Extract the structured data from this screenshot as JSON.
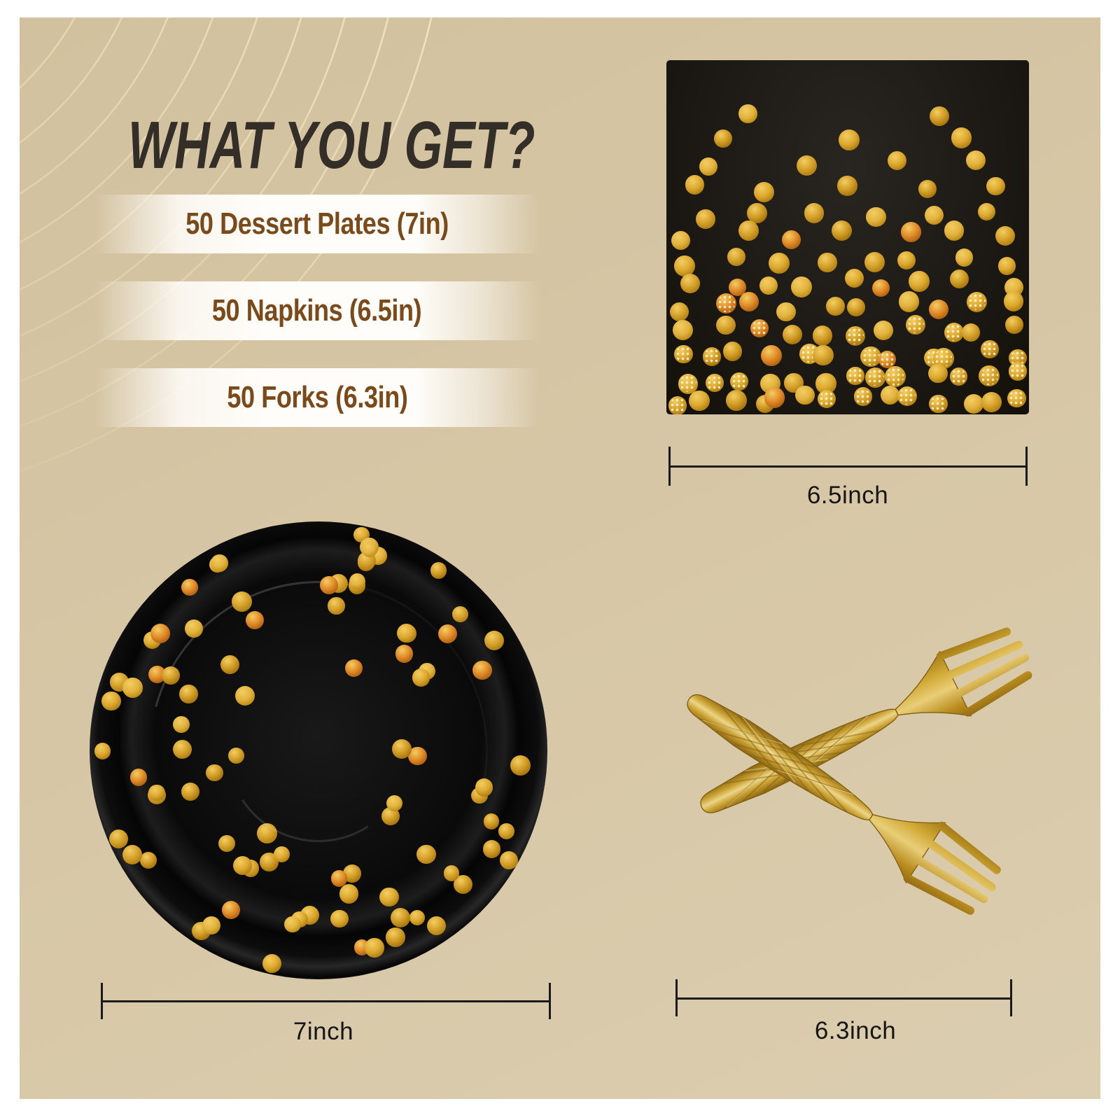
{
  "title": "WHAT YOU GET?",
  "items": [
    {
      "label": "50 Dessert Plates (7in)"
    },
    {
      "label": "50 Napkins (6.5in)"
    },
    {
      "label": "50 Forks (6.3in)"
    }
  ],
  "products": {
    "napkin": {
      "name": "black gold-dot napkin",
      "dimension": "6.5inch"
    },
    "plate": {
      "name": "black gold-dot dessert plate",
      "dimension": "7inch"
    },
    "forks": {
      "name": "gold plastic forks",
      "dimension": "6.3inch"
    }
  },
  "colors": {
    "panel": "#d6c6a5",
    "page_margin": "#ffffff",
    "title_text": "#332e28",
    "item_text": "#7a4a1b",
    "bar_white": "#fffdf9",
    "dimension_ink": "#1b1b1b",
    "arc_gold": "#eeddb0",
    "napkin_black": "#1d1a16",
    "plate_black": "#0d0d0d",
    "dot_gold": "#d2a02a",
    "dot_orange": "#e08a28",
    "fork_gold": "#caa133"
  }
}
